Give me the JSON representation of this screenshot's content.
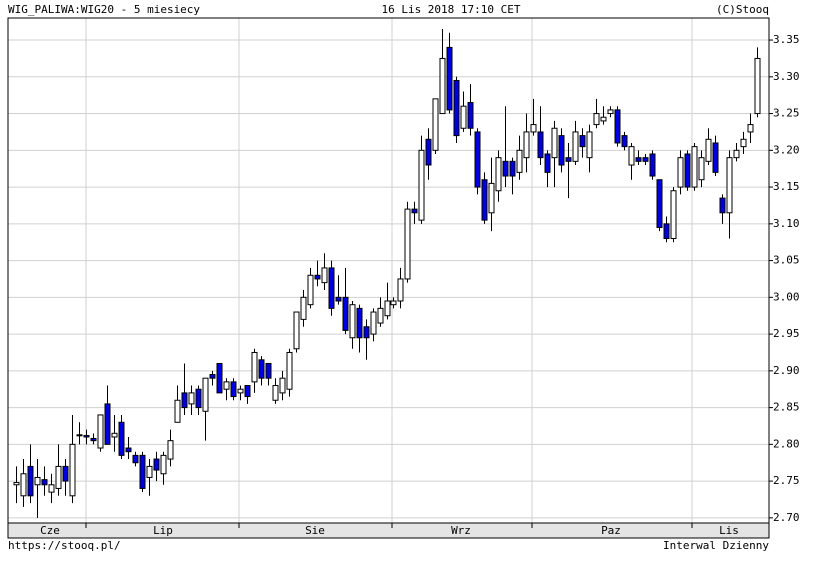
{
  "chart_data": {
    "type": "candlestick",
    "title": "WIG_PALIWA:WIG20 - 5 miesiecy",
    "subtitle": "16 Lis 2018 17:10 CET",
    "credit": "(C)Stooq",
    "footer_left": "https://stooq.pl/",
    "footer_right": "Interwal Dzienny",
    "month_labels": [
      "Cze",
      "Lip",
      "Sie",
      "Wrz",
      "Paz",
      "Lis"
    ],
    "up_color": "#ffffff",
    "down_color": "#0000e0",
    "grid": true,
    "ylim": [
      2.693,
      3.38
    ],
    "yticks": [
      {
        "value": 2.7,
        "label": "2.70"
      },
      2.75,
      {
        "value": 2.8,
        "label": "2.80"
      },
      2.85,
      {
        "value": 2.9,
        "label": "2.90"
      },
      2.95,
      {
        "value": 3.0,
        "label": "3.00"
      },
      3.05,
      {
        "value": 3.1,
        "label": "3.10"
      },
      3.15,
      {
        "value": 3.2,
        "label": "3.20"
      },
      3.25,
      {
        "value": 3.3,
        "label": "3.30"
      },
      3.35
    ],
    "ohlc": [
      [
        2.745,
        2.77,
        2.72,
        2.748
      ],
      [
        2.73,
        2.78,
        2.715,
        2.76
      ],
      [
        2.77,
        2.8,
        2.72,
        2.73
      ],
      [
        2.745,
        2.78,
        2.7,
        2.755
      ],
      [
        2.752,
        2.77,
        2.73,
        2.745
      ],
      [
        2.735,
        2.76,
        2.72,
        2.745
      ],
      [
        2.74,
        2.8,
        2.73,
        2.77
      ],
      [
        2.77,
        2.78,
        2.73,
        2.75
      ],
      [
        2.73,
        2.84,
        2.72,
        2.8
      ],
      [
        2.812,
        2.83,
        2.8,
        2.813
      ],
      [
        2.812,
        2.82,
        2.8,
        2.81
      ],
      [
        2.808,
        2.815,
        2.8,
        2.805
      ],
      [
        2.795,
        2.84,
        2.79,
        2.84
      ],
      [
        2.855,
        2.88,
        2.8,
        2.8
      ],
      [
        2.81,
        2.84,
        2.79,
        2.815
      ],
      [
        2.83,
        2.84,
        2.78,
        2.785
      ],
      [
        2.795,
        2.81,
        2.78,
        2.79
      ],
      [
        2.785,
        2.79,
        2.77,
        2.775
      ],
      [
        2.785,
        2.79,
        2.735,
        2.74
      ],
      [
        2.755,
        2.78,
        2.73,
        2.77
      ],
      [
        2.78,
        2.79,
        2.75,
        2.765
      ],
      [
        2.76,
        2.79,
        2.745,
        2.785
      ],
      [
        2.78,
        2.82,
        2.77,
        2.805
      ],
      [
        2.83,
        2.88,
        2.83,
        2.86
      ],
      [
        2.87,
        2.91,
        2.84,
        2.85
      ],
      [
        2.855,
        2.88,
        2.84,
        2.87
      ],
      [
        2.875,
        2.88,
        2.84,
        2.85
      ],
      [
        2.845,
        2.89,
        2.805,
        2.89
      ],
      [
        2.895,
        2.9,
        2.88,
        2.89
      ],
      [
        2.91,
        2.91,
        2.87,
        2.87
      ],
      [
        2.875,
        2.89,
        2.86,
        2.885
      ],
      [
        2.885,
        2.89,
        2.86,
        2.865
      ],
      [
        2.87,
        2.88,
        2.86,
        2.875
      ],
      [
        2.88,
        2.88,
        2.855,
        2.865
      ],
      [
        2.885,
        2.93,
        2.87,
        2.925
      ],
      [
        2.915,
        2.92,
        2.88,
        2.89
      ],
      [
        2.91,
        2.91,
        2.88,
        2.89
      ],
      [
        2.86,
        2.89,
        2.855,
        2.88
      ],
      [
        2.87,
        2.9,
        2.86,
        2.89
      ],
      [
        2.875,
        2.93,
        2.865,
        2.925
      ],
      [
        2.93,
        2.98,
        2.925,
        2.98
      ],
      [
        2.97,
        3.01,
        2.96,
        3.0
      ],
      [
        2.99,
        3.04,
        2.985,
        3.03
      ],
      [
        3.03,
        3.05,
        3.015,
        3.025
      ],
      [
        3.02,
        3.06,
        3.01,
        3.04
      ],
      [
        3.04,
        3.05,
        2.975,
        2.985
      ],
      [
        3.0,
        3.03,
        2.99,
        2.995
      ],
      [
        3.0,
        3.04,
        2.95,
        2.955
      ],
      [
        2.945,
        2.995,
        2.93,
        2.99
      ],
      [
        2.985,
        2.99,
        2.925,
        2.945
      ],
      [
        2.96,
        2.97,
        2.915,
        2.945
      ],
      [
        2.95,
        2.985,
        2.94,
        2.98
      ],
      [
        2.965,
        3.0,
        2.96,
        2.985
      ],
      [
        2.975,
        3.02,
        2.97,
        2.995
      ],
      [
        2.99,
        3.0,
        2.985,
        2.995
      ],
      [
        2.995,
        3.04,
        2.985,
        3.025
      ],
      [
        3.025,
        3.13,
        3.02,
        3.12
      ],
      [
        3.12,
        3.13,
        3.1,
        3.115
      ],
      [
        3.105,
        3.22,
        3.1,
        3.2
      ],
      [
        3.215,
        3.23,
        3.16,
        3.18
      ],
      [
        3.2,
        3.27,
        3.195,
        3.27
      ],
      [
        3.25,
        3.365,
        3.25,
        3.325
      ],
      [
        3.34,
        3.36,
        3.25,
        3.255
      ],
      [
        3.295,
        3.3,
        3.21,
        3.22
      ],
      [
        3.23,
        3.28,
        3.225,
        3.26
      ],
      [
        3.265,
        3.29,
        3.22,
        3.23
      ],
      [
        3.225,
        3.23,
        3.14,
        3.15
      ],
      [
        3.16,
        3.17,
        3.1,
        3.105
      ],
      [
        3.115,
        3.19,
        3.09,
        3.155
      ],
      [
        3.145,
        3.2,
        3.13,
        3.19
      ],
      [
        3.185,
        3.26,
        3.15,
        3.165
      ],
      [
        3.185,
        3.19,
        3.14,
        3.165
      ],
      [
        3.17,
        3.22,
        3.16,
        3.2
      ],
      [
        3.19,
        3.25,
        3.17,
        3.225
      ],
      [
        3.225,
        3.27,
        3.22,
        3.235
      ],
      [
        3.225,
        3.26,
        3.18,
        3.19
      ],
      [
        3.195,
        3.2,
        3.15,
        3.17
      ],
      [
        3.19,
        3.24,
        3.15,
        3.23
      ],
      [
        3.22,
        3.23,
        3.17,
        3.18
      ],
      [
        3.19,
        3.21,
        3.135,
        3.185
      ],
      [
        3.185,
        3.24,
        3.18,
        3.225
      ],
      [
        3.22,
        3.23,
        3.19,
        3.205
      ],
      [
        3.19,
        3.235,
        3.17,
        3.225
      ],
      [
        3.235,
        3.27,
        3.23,
        3.25
      ],
      [
        3.24,
        3.26,
        3.235,
        3.245
      ],
      [
        3.25,
        3.26,
        3.245,
        3.255
      ],
      [
        3.255,
        3.26,
        3.205,
        3.21
      ],
      [
        3.22,
        3.225,
        3.2,
        3.205
      ],
      [
        3.18,
        3.21,
        3.16,
        3.205
      ],
      [
        3.19,
        3.2,
        3.18,
        3.185
      ],
      [
        3.19,
        3.195,
        3.18,
        3.185
      ],
      [
        3.195,
        3.2,
        3.16,
        3.165
      ],
      [
        3.16,
        3.16,
        3.09,
        3.095
      ],
      [
        3.1,
        3.11,
        3.075,
        3.08
      ],
      [
        3.08,
        3.15,
        3.075,
        3.145
      ],
      [
        3.15,
        3.2,
        3.14,
        3.19
      ],
      [
        3.195,
        3.2,
        3.145,
        3.15
      ],
      [
        3.15,
        3.21,
        3.145,
        3.205
      ],
      [
        3.16,
        3.2,
        3.15,
        3.19
      ],
      [
        3.185,
        3.23,
        3.18,
        3.215
      ],
      [
        3.21,
        3.22,
        3.165,
        3.17
      ],
      [
        3.135,
        3.14,
        3.1,
        3.115
      ],
      [
        3.115,
        3.2,
        3.08,
        3.19
      ],
      [
        3.19,
        3.21,
        3.185,
        3.2
      ],
      [
        3.205,
        3.225,
        3.195,
        3.215
      ],
      [
        3.225,
        3.25,
        3.21,
        3.235
      ],
      [
        3.25,
        3.34,
        3.245,
        3.325
      ]
    ]
  }
}
